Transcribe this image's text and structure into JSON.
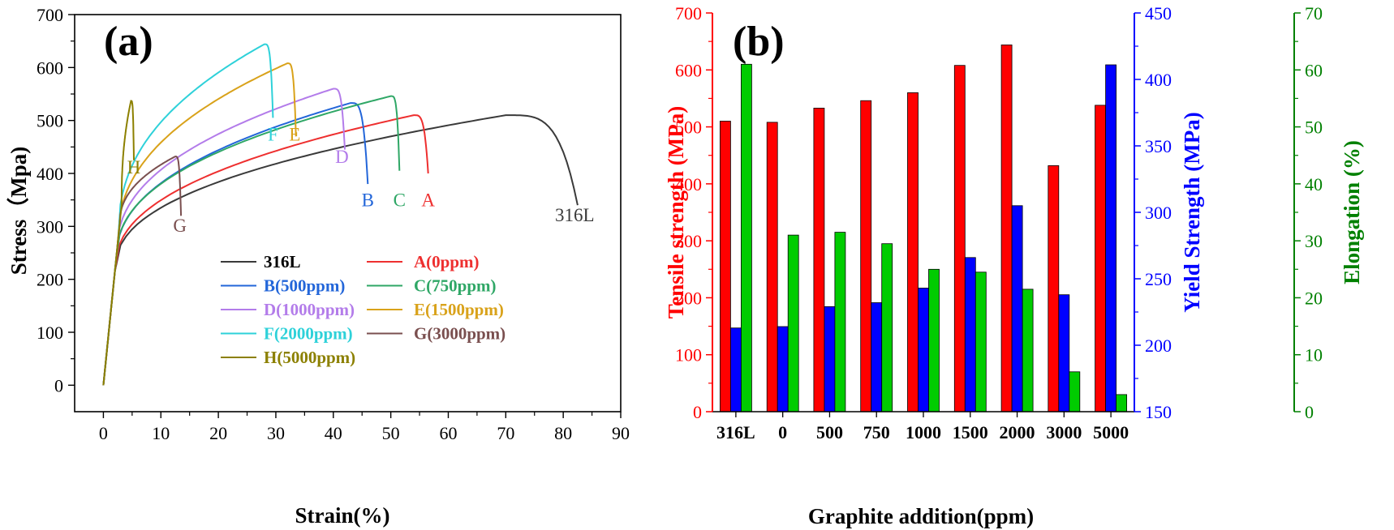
{
  "chart_data": [
    {
      "panel": "(a)",
      "type": "line",
      "xlabel": "Strain(%)",
      "ylabel": "Stress（Mpa)",
      "xlim": [
        -5,
        90
      ],
      "ylim": [
        -50,
        700
      ],
      "xticks": [
        0,
        10,
        20,
        30,
        40,
        50,
        60,
        70,
        80,
        90
      ],
      "yticks": [
        0,
        100,
        200,
        300,
        400,
        500,
        600,
        700
      ],
      "legend_position": "lower-right",
      "series": [
        {
          "name": "316L",
          "label": "316L",
          "color": "#3a3a3a",
          "yield": 215,
          "ultimate": 510,
          "peak_strain": 70,
          "fracture_strain": 82.5,
          "end_stress": 340,
          "tag_position": [
            82,
            310
          ]
        },
        {
          "name": "A(0ppm)",
          "label": "A",
          "color": "#ee2f2f",
          "yield": 215,
          "ultimate": 510,
          "peak_strain": 54,
          "fracture_strain": 56.5,
          "end_stress": 400,
          "tag_position": [
            56.5,
            338
          ]
        },
        {
          "name": "B(500ppm)",
          "label": "B",
          "color": "#2366d9",
          "yield": 230,
          "ultimate": 533,
          "peak_strain": 43,
          "fracture_strain": 46,
          "end_stress": 380,
          "tag_position": [
            46,
            338
          ]
        },
        {
          "name": "C(750ppm)",
          "label": "C",
          "color": "#2fa766",
          "yield": 235,
          "ultimate": 546,
          "peak_strain": 50,
          "fracture_strain": 51.5,
          "end_stress": 405,
          "tag_position": [
            51.5,
            338
          ]
        },
        {
          "name": "D(1000ppm)",
          "label": "D",
          "color": "#b37cea",
          "yield": 245,
          "ultimate": 560,
          "peak_strain": 40,
          "fracture_strain": 42,
          "end_stress": 445,
          "tag_position": [
            41.5,
            420
          ]
        },
        {
          "name": "E(1500ppm)",
          "label": "E",
          "color": "#d9a21a",
          "yield": 265,
          "ultimate": 608,
          "peak_strain": 32,
          "fracture_strain": 33.5,
          "end_stress": 470,
          "tag_position": [
            33.3,
            462
          ]
        },
        {
          "name": "F(2000ppm)",
          "label": "F",
          "color": "#2ed1d9",
          "yield": 280,
          "ultimate": 644,
          "peak_strain": 28,
          "fracture_strain": 29.5,
          "end_stress": 505,
          "tag_position": [
            29.5,
            462
          ]
        },
        {
          "name": "G(3000ppm)",
          "label": "G",
          "color": "#7a4f4f",
          "yield": 300,
          "ultimate": 432,
          "peak_strain": 12.5,
          "fracture_strain": 13.5,
          "end_stress": 320,
          "tag_position": [
            13.3,
            290
          ]
        },
        {
          "name": "H(5000ppm)",
          "label": "H",
          "color": "#8c8000",
          "yield": 340,
          "ultimate": 537,
          "peak_strain": 4.8,
          "fracture_strain": 5.3,
          "end_stress": 425,
          "tag_position": [
            5.3,
            400
          ]
        }
      ],
      "legend_order": [
        "316L",
        "A(0ppm)",
        "B(500ppm)",
        "C(750ppm)",
        "D(1000ppm)",
        "E(1500ppm)",
        "F(2000ppm)",
        "G(3000ppm)",
        "H(5000ppm)"
      ]
    },
    {
      "panel": "(b)",
      "type": "bar",
      "xlabel": "Graphite addition(ppm)",
      "categories": [
        "316L",
        "0",
        "500",
        "750",
        "1000",
        "1500",
        "2000",
        "3000",
        "5000"
      ],
      "series": [
        {
          "name": "Tensile strength (MPa)",
          "axis": "left",
          "color": "#ff0000",
          "values": [
            510,
            508,
            533,
            546,
            560,
            608,
            644,
            432,
            538
          ]
        },
        {
          "name": "Yield Strength (MPa)",
          "axis": "right1",
          "color": "#0000ff",
          "values": [
            213,
            214,
            229,
            232,
            243,
            266,
            305,
            238,
            411
          ]
        },
        {
          "name": "Elongation (%)",
          "axis": "right2",
          "color": "#00cc00",
          "values": [
            61,
            31,
            31.5,
            29.5,
            25,
            24.5,
            21.5,
            7,
            3
          ]
        }
      ],
      "axes": {
        "left": {
          "label": "Tensile strength (MPa)",
          "color": "#ff0000",
          "ylim": [
            0,
            700
          ],
          "ticks": [
            0,
            100,
            200,
            300,
            400,
            500,
            600,
            700
          ]
        },
        "right1": {
          "label": "Yield Strength (MPa)",
          "color": "#0000ff",
          "ylim": [
            150,
            450
          ],
          "ticks": [
            150,
            200,
            250,
            300,
            350,
            400,
            450
          ]
        },
        "right2": {
          "label": "Elongation (%)",
          "color": "#008000",
          "ylim": [
            0,
            70
          ],
          "ticks": [
            0,
            10,
            20,
            30,
            40,
            50,
            60,
            70
          ]
        }
      }
    }
  ]
}
